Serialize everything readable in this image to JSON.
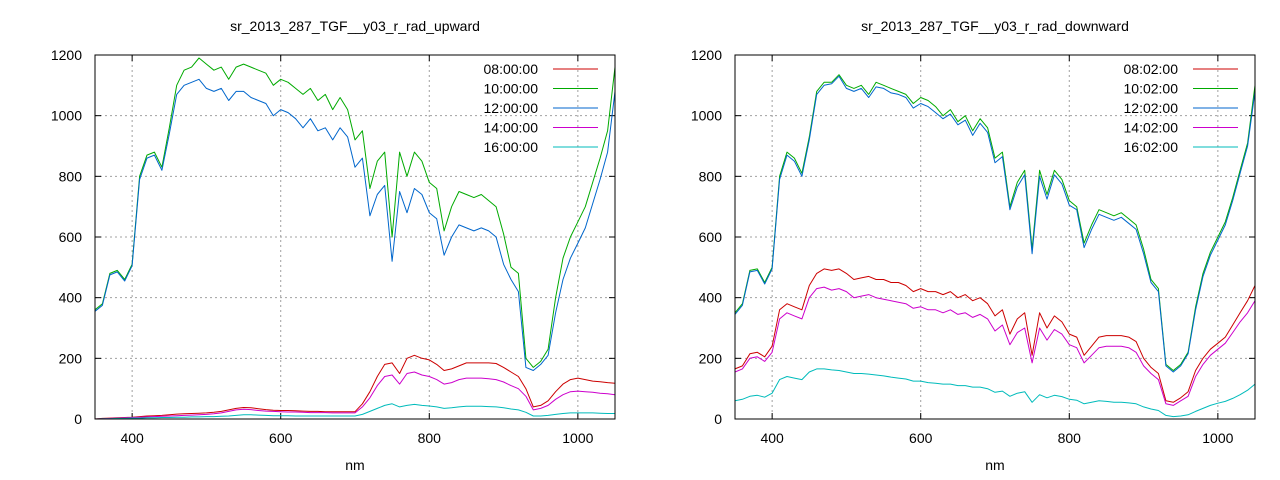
{
  "chart_data": [
    {
      "type": "line",
      "title": "sr_2013_287_TGF__y03_r_rad_upward",
      "xlabel": "nm",
      "ylabel": "",
      "xlim": [
        350,
        1050
      ],
      "ylim": [
        0,
        1200
      ],
      "xticks": [
        400,
        600,
        800,
        1000
      ],
      "yticks": [
        0,
        200,
        400,
        600,
        800,
        1000,
        1200
      ],
      "grid": true,
      "legend_position": "top-right",
      "x": [
        350,
        360,
        370,
        380,
        390,
        400,
        410,
        420,
        430,
        440,
        450,
        460,
        470,
        480,
        490,
        500,
        510,
        520,
        530,
        540,
        550,
        560,
        570,
        580,
        590,
        600,
        610,
        620,
        630,
        640,
        650,
        660,
        670,
        680,
        690,
        700,
        710,
        720,
        730,
        740,
        750,
        760,
        770,
        780,
        790,
        800,
        810,
        820,
        830,
        840,
        850,
        860,
        870,
        880,
        890,
        900,
        910,
        920,
        930,
        940,
        950,
        960,
        970,
        980,
        990,
        1000,
        1010,
        1020,
        1030,
        1040,
        1050
      ],
      "series": [
        {
          "name": "08:00:00",
          "color": "#cc0000",
          "values": [
            0,
            2,
            3,
            4,
            5,
            6,
            8,
            10,
            11,
            12,
            14,
            16,
            17,
            18,
            19,
            20,
            22,
            25,
            30,
            35,
            38,
            37,
            34,
            31,
            29,
            28,
            28,
            27,
            26,
            25,
            25,
            24,
            24,
            24,
            24,
            24,
            50,
            90,
            140,
            180,
            185,
            150,
            200,
            210,
            200,
            195,
            180,
            160,
            165,
            175,
            185,
            185,
            185,
            185,
            183,
            170,
            155,
            140,
            100,
            40,
            45,
            60,
            90,
            115,
            130,
            135,
            130,
            125,
            123,
            120,
            118
          ]
        },
        {
          "name": "10:00:00",
          "color": "#00aa00",
          "values": [
            360,
            380,
            480,
            490,
            460,
            510,
            800,
            870,
            880,
            830,
            960,
            1100,
            1150,
            1160,
            1190,
            1170,
            1150,
            1160,
            1120,
            1160,
            1170,
            1160,
            1150,
            1140,
            1100,
            1120,
            1110,
            1090,
            1070,
            1090,
            1050,
            1070,
            1020,
            1060,
            1020,
            920,
            950,
            760,
            850,
            880,
            600,
            880,
            800,
            880,
            850,
            780,
            760,
            620,
            700,
            750,
            740,
            730,
            740,
            720,
            700,
            610,
            500,
            480,
            200,
            170,
            190,
            230,
            400,
            530,
            600,
            650,
            700,
            780,
            860,
            950,
            1160
          ]
        },
        {
          "name": "12:00:00",
          "color": "#0066cc",
          "values": [
            355,
            375,
            475,
            485,
            455,
            505,
            790,
            860,
            870,
            820,
            940,
            1070,
            1100,
            1110,
            1120,
            1090,
            1080,
            1090,
            1050,
            1080,
            1080,
            1060,
            1050,
            1040,
            1000,
            1020,
            1010,
            990,
            960,
            990,
            950,
            960,
            920,
            960,
            930,
            830,
            860,
            670,
            740,
            770,
            520,
            750,
            680,
            760,
            740,
            680,
            660,
            540,
            600,
            640,
            630,
            620,
            630,
            620,
            600,
            510,
            460,
            420,
            170,
            160,
            180,
            210,
            350,
            460,
            530,
            580,
            630,
            710,
            790,
            880,
            1080
          ]
        },
        {
          "name": "14:00:00",
          "color": "#cc00cc",
          "values": [
            0,
            1,
            2,
            3,
            4,
            5,
            6,
            7,
            8,
            9,
            10,
            11,
            12,
            13,
            14,
            15,
            17,
            20,
            25,
            30,
            32,
            31,
            28,
            26,
            25,
            24,
            23,
            23,
            22,
            21,
            21,
            21,
            20,
            20,
            20,
            20,
            40,
            70,
            110,
            140,
            145,
            115,
            150,
            155,
            145,
            140,
            130,
            115,
            120,
            130,
            135,
            135,
            135,
            133,
            130,
            122,
            110,
            100,
            75,
            30,
            35,
            45,
            65,
            80,
            90,
            92,
            90,
            88,
            85,
            83,
            80
          ]
        },
        {
          "name": "16:00:00",
          "color": "#00bbbb",
          "values": [
            0,
            1,
            1,
            2,
            2,
            3,
            3,
            4,
            4,
            5,
            5,
            6,
            6,
            7,
            7,
            8,
            8,
            9,
            10,
            12,
            14,
            14,
            13,
            12,
            11,
            11,
            11,
            10,
            10,
            10,
            10,
            10,
            10,
            10,
            10,
            10,
            15,
            25,
            35,
            45,
            50,
            40,
            45,
            48,
            45,
            43,
            40,
            35,
            37,
            40,
            42,
            42,
            42,
            41,
            40,
            37,
            33,
            30,
            22,
            10,
            10,
            12,
            15,
            18,
            20,
            20,
            20,
            20,
            19,
            18,
            18
          ]
        }
      ]
    },
    {
      "type": "line",
      "title": "sr_2013_287_TGF__y03_r_rad_downward",
      "xlabel": "nm",
      "ylabel": "",
      "xlim": [
        350,
        1050
      ],
      "ylim": [
        0,
        1200
      ],
      "xticks": [
        400,
        600,
        800,
        1000
      ],
      "yticks": [
        0,
        200,
        400,
        600,
        800,
        1000,
        1200
      ],
      "grid": true,
      "legend_position": "top-right",
      "x": [
        350,
        360,
        370,
        380,
        390,
        400,
        410,
        420,
        430,
        440,
        450,
        460,
        470,
        480,
        490,
        500,
        510,
        520,
        530,
        540,
        550,
        560,
        570,
        580,
        590,
        600,
        610,
        620,
        630,
        640,
        650,
        660,
        670,
        680,
        690,
        700,
        710,
        720,
        730,
        740,
        750,
        760,
        770,
        780,
        790,
        800,
        810,
        820,
        830,
        840,
        850,
        860,
        870,
        880,
        890,
        900,
        910,
        920,
        930,
        940,
        950,
        960,
        970,
        980,
        990,
        1000,
        1010,
        1020,
        1030,
        1040,
        1050
      ],
      "series": [
        {
          "name": "08:02:00",
          "color": "#cc0000",
          "values": [
            165,
            175,
            215,
            220,
            205,
            240,
            360,
            380,
            370,
            360,
            440,
            480,
            495,
            490,
            495,
            480,
            460,
            465,
            470,
            460,
            460,
            450,
            450,
            440,
            420,
            430,
            420,
            420,
            410,
            420,
            400,
            410,
            390,
            400,
            380,
            340,
            360,
            280,
            330,
            350,
            210,
            350,
            300,
            340,
            320,
            280,
            270,
            210,
            240,
            270,
            275,
            275,
            275,
            270,
            255,
            200,
            170,
            150,
            60,
            55,
            70,
            90,
            160,
            200,
            230,
            250,
            270,
            310,
            350,
            390,
            440
          ]
        },
        {
          "name": "10:02:00",
          "color": "#00aa00",
          "values": [
            350,
            380,
            490,
            495,
            450,
            500,
            800,
            880,
            860,
            810,
            930,
            1080,
            1110,
            1110,
            1135,
            1100,
            1090,
            1100,
            1070,
            1110,
            1100,
            1090,
            1080,
            1070,
            1040,
            1060,
            1050,
            1030,
            1000,
            1020,
            980,
            1000,
            950,
            990,
            960,
            860,
            880,
            700,
            780,
            820,
            560,
            820,
            740,
            820,
            790,
            720,
            700,
            580,
            640,
            690,
            680,
            670,
            680,
            660,
            640,
            560,
            460,
            430,
            180,
            160,
            180,
            220,
            370,
            480,
            550,
            600,
            650,
            730,
            820,
            910,
            1100
          ]
        },
        {
          "name": "12:02:00",
          "color": "#0066cc",
          "values": [
            345,
            375,
            485,
            490,
            445,
            495,
            790,
            870,
            850,
            800,
            920,
            1070,
            1100,
            1105,
            1130,
            1090,
            1080,
            1090,
            1060,
            1095,
            1090,
            1075,
            1070,
            1060,
            1025,
            1040,
            1030,
            1010,
            990,
            1005,
            970,
            985,
            935,
            975,
            945,
            845,
            865,
            690,
            765,
            805,
            545,
            800,
            725,
            805,
            775,
            705,
            690,
            565,
            625,
            675,
            665,
            655,
            665,
            645,
            625,
            545,
            450,
            420,
            175,
            155,
            175,
            215,
            360,
            470,
            540,
            590,
            640,
            720,
            810,
            900,
            1080
          ]
        },
        {
          "name": "14:02:00",
          "color": "#cc00cc",
          "values": [
            155,
            165,
            200,
            205,
            190,
            220,
            330,
            350,
            340,
            330,
            400,
            430,
            435,
            425,
            430,
            420,
            400,
            405,
            410,
            400,
            395,
            390,
            385,
            380,
            365,
            370,
            360,
            360,
            350,
            360,
            345,
            350,
            335,
            345,
            330,
            290,
            310,
            245,
            285,
            300,
            185,
            300,
            260,
            295,
            280,
            245,
            235,
            185,
            210,
            235,
            240,
            240,
            240,
            235,
            220,
            175,
            150,
            130,
            50,
            45,
            60,
            75,
            140,
            180,
            210,
            230,
            250,
            285,
            320,
            350,
            390
          ]
        },
        {
          "name": "16:02:00",
          "color": "#00bbbb",
          "values": [
            60,
            65,
            75,
            78,
            72,
            85,
            130,
            140,
            135,
            130,
            155,
            165,
            165,
            162,
            160,
            155,
            150,
            150,
            148,
            145,
            142,
            138,
            135,
            132,
            125,
            125,
            120,
            118,
            115,
            115,
            110,
            110,
            105,
            105,
            100,
            88,
            92,
            75,
            85,
            90,
            55,
            80,
            70,
            78,
            74,
            65,
            62,
            50,
            55,
            60,
            58,
            55,
            55,
            53,
            50,
            40,
            33,
            28,
            12,
            8,
            10,
            14,
            25,
            35,
            45,
            52,
            58,
            68,
            80,
            95,
            115
          ]
        }
      ]
    }
  ]
}
